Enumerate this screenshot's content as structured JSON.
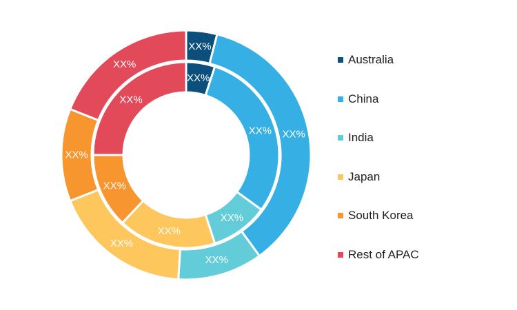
{
  "chart_data": {
    "type": "donut",
    "categories": [
      "Australia",
      "China",
      "India",
      "Japan",
      "South Korea",
      "Rest of APAC"
    ],
    "colors": [
      "#0c4f7c",
      "#36b0e4",
      "#63ccd9",
      "#fdc75d",
      "#f7952f",
      "#e24a59"
    ],
    "series": [
      {
        "ring": "outer",
        "values": [
          4,
          36,
          11,
          18,
          12,
          19
        ],
        "labels": [
          "XX%",
          "XX%",
          "XX%",
          "XX%",
          "XX%",
          "XX%"
        ]
      },
      {
        "ring": "inner",
        "values": [
          5,
          30,
          10,
          17,
          13,
          25
        ],
        "labels": [
          "XX%",
          "XX%",
          "XX%",
          "XX%",
          "XX%",
          "XX%"
        ]
      }
    ],
    "legend_position": "right",
    "title": "",
    "xlabel": "",
    "ylabel": ""
  }
}
